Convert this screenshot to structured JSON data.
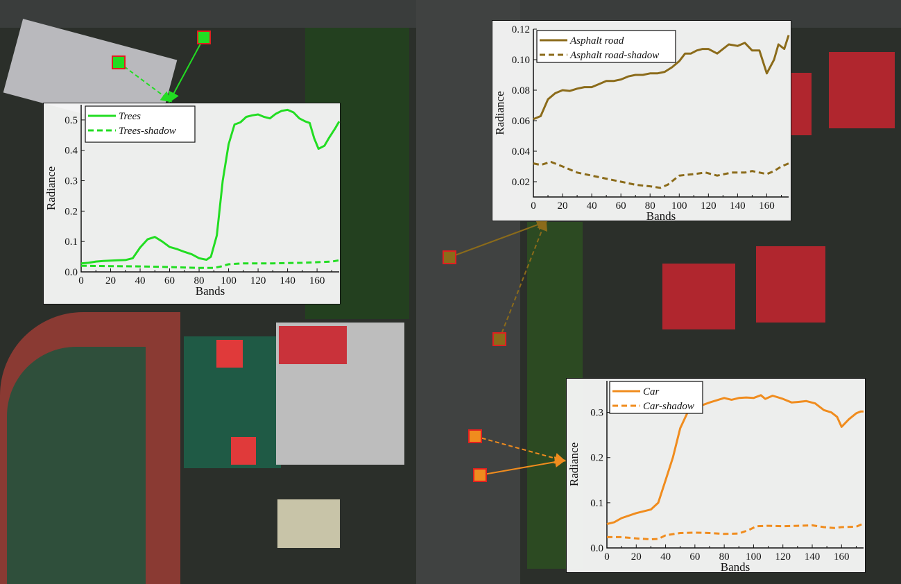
{
  "chart_data": [
    {
      "type": "line",
      "xlabel": "Bands",
      "ylabel": "Radiance",
      "xlim": [
        0,
        175
      ],
      "ylim": [
        0,
        0.55
      ],
      "xticks": [
        0,
        20,
        40,
        60,
        80,
        100,
        120,
        140,
        160
      ],
      "yticks": [
        "0.0",
        "0.1",
        "0.2",
        "0.3",
        "0.4",
        "0.5"
      ],
      "legend_position": "top-left",
      "color": "#22dd22",
      "series": [
        {
          "name": "Trees",
          "style": "solid",
          "x": [
            0,
            5,
            10,
            15,
            20,
            25,
            30,
            35,
            40,
            45,
            50,
            55,
            60,
            65,
            70,
            75,
            80,
            85,
            88,
            92,
            96,
            100,
            104,
            108,
            112,
            116,
            120,
            124,
            128,
            132,
            136,
            140,
            144,
            148,
            152,
            155,
            158,
            161,
            165,
            168,
            172,
            176
          ],
          "y": [
            0.028,
            0.03,
            0.034,
            0.036,
            0.037,
            0.038,
            0.039,
            0.045,
            0.08,
            0.107,
            0.115,
            0.1,
            0.082,
            0.075,
            0.066,
            0.058,
            0.045,
            0.04,
            0.05,
            0.12,
            0.3,
            0.42,
            0.485,
            0.492,
            0.51,
            0.515,
            0.518,
            0.51,
            0.505,
            0.52,
            0.53,
            0.533,
            0.525,
            0.505,
            0.495,
            0.49,
            0.44,
            0.405,
            0.415,
            0.44,
            0.47,
            0.495
          ]
        },
        {
          "name": "Trees-shadow",
          "style": "dashed",
          "x": [
            0,
            20,
            40,
            60,
            80,
            90,
            95,
            100,
            110,
            130,
            150,
            160,
            170,
            176
          ],
          "y": [
            0.02,
            0.019,
            0.018,
            0.016,
            0.013,
            0.013,
            0.018,
            0.025,
            0.028,
            0.028,
            0.03,
            0.032,
            0.034,
            0.038
          ]
        }
      ]
    },
    {
      "type": "line",
      "xlabel": "Bands",
      "ylabel": "Radiance",
      "xlim": [
        0,
        175
      ],
      "ylim": [
        0.01,
        0.12
      ],
      "xticks": [
        0,
        20,
        40,
        60,
        80,
        100,
        120,
        140,
        160
      ],
      "yticks": [
        "0.02",
        "0.04",
        "0.06",
        "0.08",
        "0.10",
        "0.12"
      ],
      "legend_position": "top-left",
      "color": "#8b6b1a",
      "series": [
        {
          "name": "Asphalt road",
          "style": "solid",
          "x": [
            0,
            5,
            10,
            15,
            20,
            25,
            30,
            35,
            40,
            45,
            50,
            55,
            60,
            65,
            70,
            75,
            80,
            85,
            90,
            95,
            100,
            104,
            108,
            112,
            116,
            120,
            126,
            130,
            134,
            140,
            145,
            150,
            155,
            160,
            165,
            168,
            172,
            176
          ],
          "y": [
            0.061,
            0.063,
            0.074,
            0.078,
            0.08,
            0.0795,
            0.081,
            0.082,
            0.082,
            0.084,
            0.086,
            0.086,
            0.087,
            0.089,
            0.09,
            0.09,
            0.091,
            0.091,
            0.092,
            0.095,
            0.099,
            0.104,
            0.104,
            0.106,
            0.107,
            0.107,
            0.104,
            0.107,
            0.11,
            0.109,
            0.111,
            0.106,
            0.106,
            0.091,
            0.1,
            0.11,
            0.107,
            0.116
          ]
        },
        {
          "name": "Asphalt road-shadow",
          "style": "dashed",
          "x": [
            0,
            5,
            12,
            20,
            30,
            40,
            50,
            60,
            70,
            80,
            87,
            92,
            100,
            110,
            118,
            126,
            136,
            145,
            150,
            160,
            165,
            170,
            176
          ],
          "y": [
            0.032,
            0.031,
            0.033,
            0.03,
            0.026,
            0.024,
            0.022,
            0.02,
            0.018,
            0.017,
            0.016,
            0.018,
            0.024,
            0.025,
            0.026,
            0.024,
            0.026,
            0.026,
            0.027,
            0.025,
            0.027,
            0.03,
            0.032
          ]
        }
      ]
    },
    {
      "type": "line",
      "xlabel": "Bands",
      "ylabel": "Radiance",
      "xlim": [
        0,
        175
      ],
      "ylim": [
        0,
        0.37
      ],
      "xticks": [
        0,
        20,
        40,
        60,
        80,
        100,
        120,
        140,
        160
      ],
      "yticks": [
        "0.0",
        "0.1",
        "0.2",
        "0.3"
      ],
      "legend_position": "top-left",
      "color": "#f08c1e",
      "series": [
        {
          "name": "Car",
          "style": "solid",
          "x": [
            0,
            5,
            10,
            20,
            30,
            35,
            40,
            45,
            50,
            55,
            60,
            70,
            80,
            85,
            90,
            95,
            100,
            105,
            108,
            113,
            120,
            126,
            130,
            136,
            142,
            148,
            153,
            157,
            160,
            165,
            170,
            173,
            176
          ],
          "y": [
            0.053,
            0.057,
            0.066,
            0.077,
            0.085,
            0.1,
            0.15,
            0.2,
            0.265,
            0.3,
            0.31,
            0.322,
            0.332,
            0.328,
            0.332,
            0.333,
            0.332,
            0.338,
            0.33,
            0.337,
            0.33,
            0.322,
            0.323,
            0.325,
            0.32,
            0.305,
            0.3,
            0.29,
            0.268,
            0.285,
            0.298,
            0.302,
            0.302
          ]
        },
        {
          "name": "Car-shadow",
          "style": "dashed",
          "x": [
            0,
            10,
            20,
            30,
            35,
            40,
            50,
            60,
            70,
            80,
            90,
            97,
            102,
            110,
            120,
            130,
            140,
            148,
            155,
            160,
            170,
            176
          ],
          "y": [
            0.024,
            0.024,
            0.021,
            0.019,
            0.02,
            0.028,
            0.033,
            0.034,
            0.033,
            0.031,
            0.032,
            0.04,
            0.048,
            0.049,
            0.048,
            0.049,
            0.05,
            0.046,
            0.044,
            0.046,
            0.047,
            0.054
          ]
        }
      ]
    }
  ],
  "colors": {
    "trees": "#22dd22",
    "asphalt": "#8b6b1a",
    "car": "#f08c1e",
    "marker_border": "#e02020"
  }
}
